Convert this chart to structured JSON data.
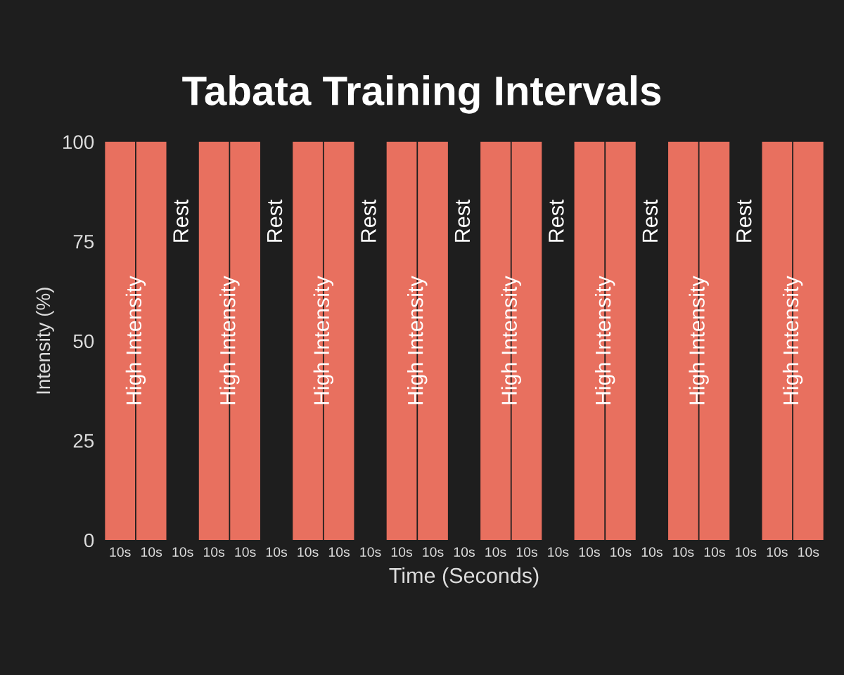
{
  "chart_data": {
    "type": "bar",
    "title": "Tabata Training Intervals",
    "xlabel": "Time (Seconds)",
    "ylabel": "Intensity (%)",
    "categories": [
      "10s",
      "10s",
      "10s",
      "10s",
      "10s",
      "10s",
      "10s",
      "10s",
      "10s",
      "10s",
      "10s",
      "10s",
      "10s",
      "10s",
      "10s",
      "10s",
      "10s",
      "10s",
      "10s",
      "10s",
      "10s",
      "10s",
      "10s"
    ],
    "values": [
      100,
      100,
      0,
      100,
      100,
      0,
      100,
      100,
      0,
      100,
      100,
      0,
      100,
      100,
      0,
      100,
      100,
      0,
      100,
      100,
      0,
      100,
      100
    ],
    "value_labels": [
      "High Intensity",
      null,
      null,
      "High Intensity",
      null,
      null,
      "High Intensity",
      null,
      null,
      "High Intensity",
      null,
      null,
      "High Intensity",
      null,
      null,
      "High Intensity",
      null,
      null,
      "High Intensity",
      null,
      null,
      "High Intensity",
      null
    ],
    "annotations": [
      "Rest",
      "Rest",
      "Rest",
      "Rest",
      "Rest",
      "Rest",
      "Rest"
    ],
    "color": "#e8705f",
    "ylim": [
      0,
      100
    ],
    "yticks": [
      0,
      25,
      50,
      75,
      100
    ],
    "grid": false,
    "legend": false
  }
}
